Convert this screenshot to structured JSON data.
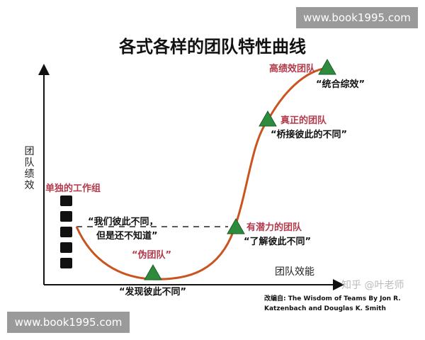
{
  "title": "各式各样的团队特性曲线",
  "watermark_top": "www.book1995.com",
  "watermark_bottom": "www.book1995.com",
  "y_axis_label": "团队绩效",
  "x_axis_label": "团队效能",
  "stages": [
    {
      "name": "单独的工作组",
      "quote_line1": "“我们彼此不同，",
      "quote_line2": "但是还不知道”"
    },
    {
      "name": "“伪团队”",
      "quote": "“发现彼此不同”"
    },
    {
      "name": "有潜力的团队",
      "quote": "“了解彼此不同”"
    },
    {
      "name": "真正的团队",
      "quote": "“桥接彼此的不同”"
    },
    {
      "name": "高绩效团队",
      "quote": "“统合综效”"
    }
  ],
  "source_line1": "改编自: The Wisdom of Teams By Jon R.",
  "source_line2": "Katzenbach and Douglas K. Smith",
  "zhihu_watermark": "知乎 @叶老师",
  "colors": {
    "curve": "#c9541f",
    "stage_label": "#b23a4a",
    "marker": "#2e8b3e",
    "watermark_bg": "#9a9a9a"
  }
}
